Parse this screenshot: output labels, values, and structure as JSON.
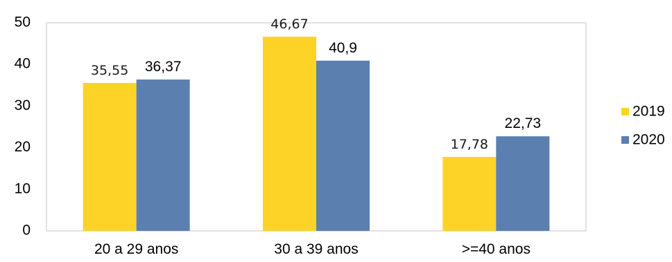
{
  "chart_data": {
    "type": "bar",
    "categories": [
      "20 a 29 anos",
      "30 a 39 anos",
      ">=40 anos"
    ],
    "series": [
      {
        "name": "2019",
        "color": "#FDD327",
        "values": [
          35.55,
          46.67,
          17.78
        ],
        "labels": [
          "35,55",
          "46,67",
          "17,78"
        ]
      },
      {
        "name": "2020",
        "color": "#5B80B0",
        "values": [
          36.37,
          40.9,
          22.73
        ],
        "labels": [
          "36,37",
          "40,9",
          "22,73"
        ]
      }
    ],
    "ylim": [
      0,
      50
    ],
    "yticks": [
      0,
      10,
      20,
      30,
      40,
      50
    ],
    "grid": false,
    "legend": "right",
    "plot_border_color": "#D9D9D9"
  }
}
